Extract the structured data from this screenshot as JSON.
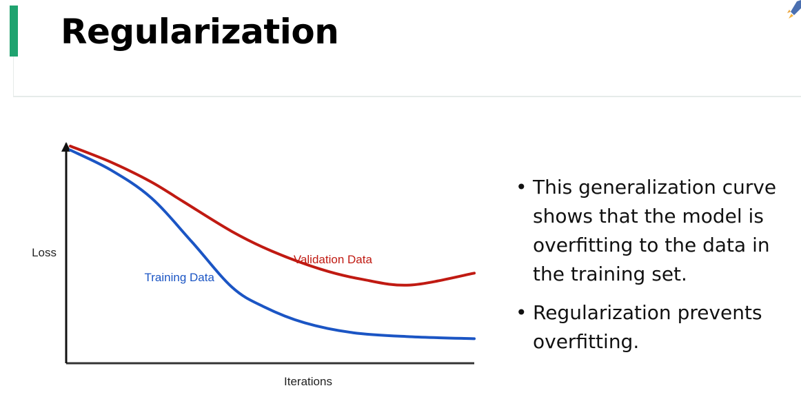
{
  "slide": {
    "title": "Regularization",
    "accent_color": "#1fa36f",
    "bullets": [
      "This generalization curve shows that the model is overfitting to the data in the training set.",
      "Regularization prevents overfitting."
    ]
  },
  "chart_data": {
    "type": "line",
    "title": "",
    "xlabel": "Iterations",
    "ylabel": "Loss",
    "axis_ticks": "none",
    "xlim": [
      0,
      100
    ],
    "ylim": [
      0,
      100
    ],
    "series": [
      {
        "name": "Validation Data",
        "color": "#c01a12",
        "x": [
          0,
          10,
          20,
          28,
          40,
          50,
          62,
          72,
          84,
          100
        ],
        "y": [
          100,
          92,
          82,
          72,
          57,
          47,
          38,
          33,
          30,
          36
        ]
      },
      {
        "name": "Training Data",
        "color": "#1b55c4",
        "x": [
          0,
          10,
          20,
          30,
          40,
          48,
          58,
          70,
          84,
          100
        ],
        "y": [
          98,
          88,
          74,
          52,
          29,
          19,
          11,
          6,
          4,
          3
        ]
      }
    ],
    "annotations": [
      "Validation Data",
      "Training Data"
    ]
  }
}
